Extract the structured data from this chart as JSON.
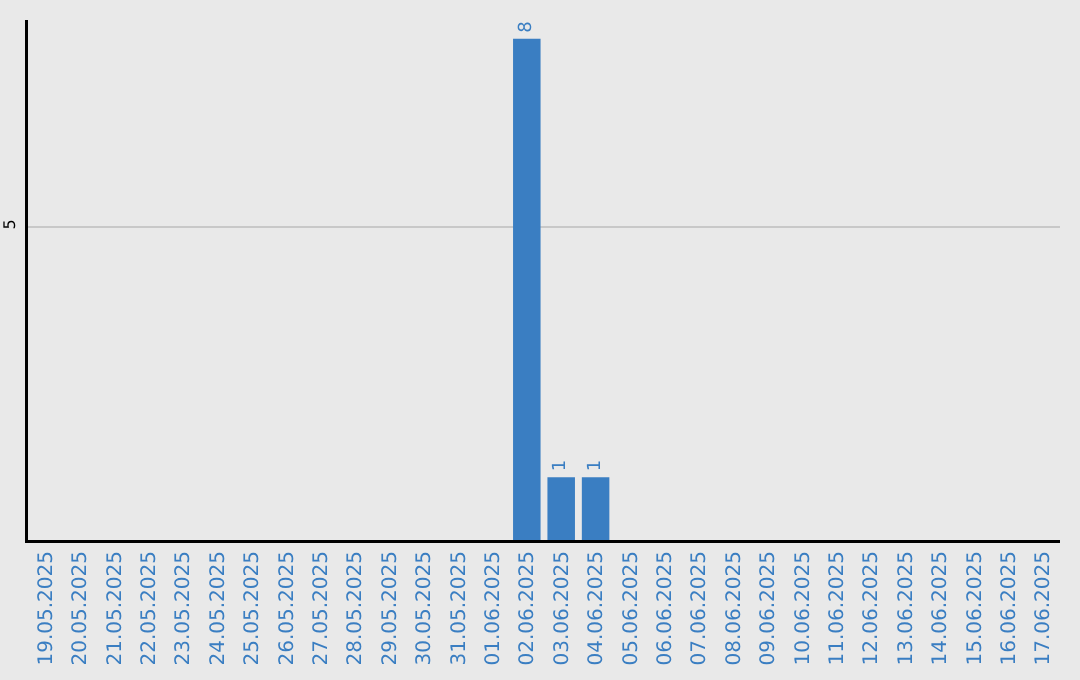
{
  "chart_data": {
    "type": "bar",
    "categories": [
      "19.05.2025",
      "20.05.2025",
      "21.05.2025",
      "22.05.2025",
      "23.05.2025",
      "24.05.2025",
      "25.05.2025",
      "26.05.2025",
      "27.05.2025",
      "28.05.2025",
      "29.05.2025",
      "30.05.2025",
      "31.05.2025",
      "01.06.2025",
      "02.06.2025",
      "03.06.2025",
      "04.06.2025",
      "05.06.2025",
      "06.06.2025",
      "07.06.2025",
      "08.06.2025",
      "09.06.2025",
      "10.06.2025",
      "11.06.2025",
      "12.06.2025",
      "13.06.2025",
      "14.06.2025",
      "15.06.2025",
      "16.06.2025",
      "17.06.2025"
    ],
    "values": [
      null,
      null,
      null,
      null,
      null,
      null,
      null,
      null,
      null,
      null,
      null,
      null,
      null,
      null,
      8,
      1,
      1,
      null,
      null,
      null,
      null,
      null,
      null,
      null,
      null,
      null,
      null,
      null,
      null,
      null
    ],
    "value_labels": [
      null,
      null,
      null,
      null,
      null,
      null,
      null,
      null,
      null,
      null,
      null,
      null,
      null,
      null,
      "8",
      "1",
      "1",
      null,
      null,
      null,
      null,
      null,
      null,
      null,
      null,
      null,
      null,
      null,
      null,
      null
    ],
    "color": "#3a7ec2",
    "ylim": [
      0,
      8.3
    ],
    "yticks": [
      5
    ],
    "grid": "y"
  }
}
